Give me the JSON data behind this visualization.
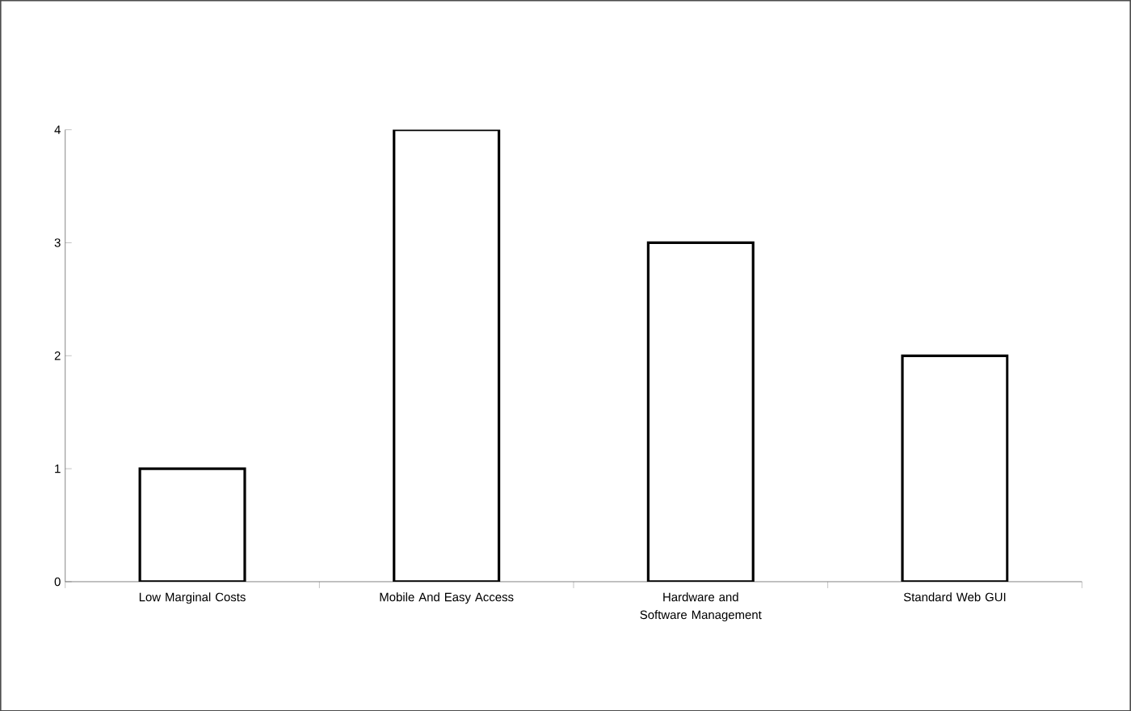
{
  "chart_data": {
    "type": "bar",
    "categories": [
      "Low Marginal Costs",
      "Mobile And Easy Access",
      "Hardware and Software Management",
      "Standard Web GUI"
    ],
    "values": [
      1,
      4,
      3,
      2
    ],
    "color": "#ffffff",
    "ylim": [
      0,
      4
    ],
    "yticks": [
      0,
      1,
      2,
      3,
      4
    ],
    "grid": false,
    "legend": false
  }
}
